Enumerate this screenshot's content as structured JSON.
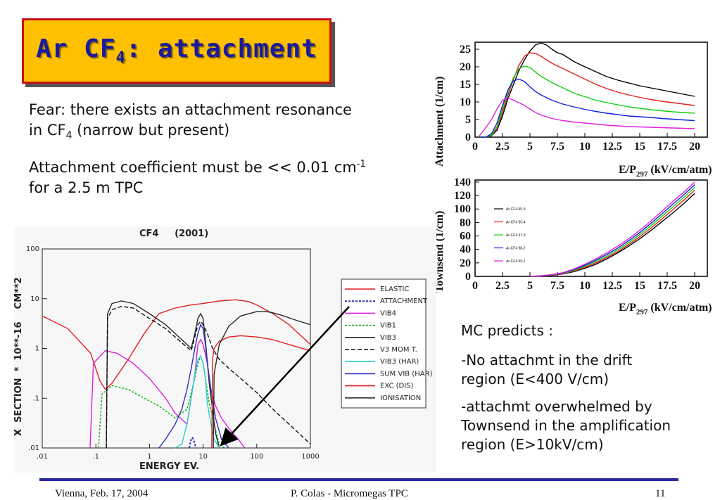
{
  "title": {
    "main": "Ar CF",
    "sub": "4",
    "rest": ": attachment"
  },
  "fear": {
    "line1": "Fear: there exists an attachment resonance",
    "line2_pre": "in CF",
    "line2_sub": "4",
    "line2_post": " (narrow but present)"
  },
  "coef": {
    "line1_pre": "Attachment coefficient must be << 0.01 cm",
    "line1_sup": "-1",
    "line2": "for a 2.5 m TPC"
  },
  "mc": {
    "l1": "MC predicts :",
    "l2": "-No attachmt in the drift",
    "l3": "region (E<400 V/cm)",
    "l4": "-attachmt overwhelmed by",
    "l5": "Townsend in the amplification",
    "l6": "region (E>10kV/cm)"
  },
  "footer": {
    "left": "Vienna,  Feb. 17, 2004",
    "center": "P. Colas  -  Micromegas TPC",
    "right": "11"
  },
  "chart_data": [
    {
      "type": "line",
      "ylabel": "Attachment (1/cm)",
      "xlabel_pre": "E/P",
      "xlabel_sub": "297",
      "xlabel_post": " (kV/cm/atm)",
      "xlim": [
        0,
        20
      ],
      "ylim": [
        0,
        27
      ],
      "xticks": [
        "0",
        "2.5",
        "5",
        "7.5",
        "10",
        "12.5",
        "15",
        "17.5",
        "20"
      ],
      "yticks": [
        "0",
        "5",
        "10",
        "15",
        "20",
        "25"
      ],
      "series": [
        {
          "color": "#000000",
          "x": [
            0.5,
            1,
            1.5,
            2,
            2.5,
            3,
            3.5,
            4,
            4.5,
            5,
            5.5,
            6,
            6.5,
            7,
            7.5,
            8,
            9,
            10,
            11,
            12,
            13,
            14,
            15,
            16,
            17,
            18,
            19,
            20
          ],
          "y": [
            0,
            0,
            0.4,
            2,
            6,
            11,
            15,
            19,
            22,
            24.5,
            26.2,
            26.8,
            26.2,
            25,
            24,
            23.5,
            21.5,
            20,
            18.6,
            17.2,
            16.2,
            15.4,
            14.6,
            14,
            13.4,
            12.8,
            12.2,
            11.6
          ]
        },
        {
          "color": "#e02020",
          "x": [
            0.5,
            1,
            1.5,
            2,
            2.5,
            3,
            3.5,
            4,
            4.5,
            5,
            5.5,
            6,
            6.5,
            7,
            8,
            9,
            10,
            11,
            12,
            13,
            14,
            15,
            16,
            17,
            18,
            19,
            20
          ],
          "y": [
            0,
            0,
            0.5,
            2.5,
            7,
            12,
            16.5,
            20.5,
            23,
            24,
            23.8,
            23,
            22,
            21,
            19.5,
            18,
            16.5,
            15,
            13.8,
            12.8,
            12,
            11.3,
            10.7,
            10.2,
            9.8,
            9.4,
            9
          ]
        },
        {
          "color": "#10d010",
          "x": [
            0.5,
            1,
            1.5,
            2,
            2.5,
            3,
            3.5,
            4,
            4.5,
            5,
            5.5,
            6,
            7,
            8,
            9,
            10,
            11,
            12,
            13,
            14,
            15,
            16,
            17,
            18,
            19,
            20
          ],
          "y": [
            0,
            0,
            0.6,
            3,
            8,
            13,
            17,
            19.5,
            20.2,
            19.8,
            18.5,
            17.3,
            15.5,
            14,
            12.5,
            11.5,
            10.5,
            9.8,
            9.2,
            8.6,
            8.2,
            7.8,
            7.5,
            7.2,
            7,
            6.8
          ]
        },
        {
          "color": "#1020e0",
          "x": [
            0.5,
            1,
            1.5,
            2,
            2.5,
            3,
            3.5,
            4,
            4.5,
            5,
            5.5,
            6,
            7,
            8,
            9,
            10,
            11,
            12,
            13,
            14,
            15,
            16,
            17,
            18,
            19,
            20
          ],
          "y": [
            0,
            0,
            1,
            4,
            9,
            13.5,
            16,
            16.5,
            15.8,
            14.3,
            13,
            12,
            10.5,
            9.4,
            8.6,
            7.9,
            7.3,
            6.8,
            6.4,
            6,
            5.8,
            5.6,
            5.3,
            5.1,
            4.9,
            4.7
          ]
        },
        {
          "color": "#e020e0",
          "x": [
            0.3,
            0.8,
            1.5,
            2,
            2.5,
            3,
            3.5,
            4,
            4.5,
            5,
            5.5,
            6,
            7,
            8,
            9,
            10,
            11,
            12,
            13,
            14,
            15,
            16,
            17,
            18,
            19,
            20
          ],
          "y": [
            0,
            2,
            5,
            8,
            10.5,
            11.2,
            10.5,
            9.8,
            9,
            8,
            7,
            6.3,
            5.3,
            4.7,
            4.3,
            4,
            3.7,
            3.4,
            3.2,
            3,
            2.9,
            2.8,
            2.7,
            2.6,
            2.5,
            2.4
          ]
        }
      ]
    },
    {
      "type": "line",
      "ylabel": "Townsend (1/cm)",
      "xlabel_pre": "E/P",
      "xlabel_sub": "297",
      "xlabel_post": " (kV/cm/atm)",
      "xlim": [
        0,
        20
      ],
      "ylim": [
        0,
        142
      ],
      "xticks": [
        "0",
        "2.5",
        "5",
        "7.5",
        "10",
        "12.5",
        "15",
        "17.5",
        "20"
      ],
      "yticks": [
        "0",
        "20",
        "40",
        "60",
        "80",
        "100",
        "120",
        "140"
      ],
      "series": [
        {
          "name": "Ar-CF4 95-5",
          "color": "#000000",
          "x": [
            5,
            6,
            7,
            8,
            9,
            10,
            11,
            12,
            13,
            14,
            15,
            16,
            17,
            18,
            19,
            20
          ],
          "y": [
            0,
            0.5,
            1.5,
            3.5,
            7,
            12,
            18,
            26,
            35,
            45,
            56,
            68,
            81,
            94,
            108,
            123
          ]
        },
        {
          "name": "Ar-CF4 96-4",
          "color": "#e02020",
          "x": [
            5,
            6,
            7,
            8,
            9,
            10,
            11,
            12,
            13,
            14,
            15,
            16,
            17,
            18,
            19,
            20
          ],
          "y": [
            0,
            0.6,
            1.8,
            4,
            8,
            13.5,
            20,
            28,
            37,
            47.5,
            59,
            71.5,
            85,
            99,
            113,
            128
          ]
        },
        {
          "name": "Ar-CF4 97-3",
          "color": "#10d010",
          "x": [
            5,
            6,
            7,
            8,
            9,
            10,
            11,
            12,
            13,
            14,
            15,
            16,
            17,
            18,
            19,
            20
          ],
          "y": [
            0,
            0.7,
            2,
            4.5,
            9,
            15,
            22,
            30,
            39.5,
            50,
            62,
            75,
            89,
            103,
            117,
            132
          ]
        },
        {
          "name": "Ar-CF4 98-2",
          "color": "#1020e0",
          "x": [
            5,
            6,
            7,
            8,
            9,
            10,
            11,
            12,
            13,
            14,
            15,
            16,
            17,
            18,
            19,
            20
          ],
          "y": [
            0,
            0.8,
            2.3,
            5,
            10,
            16.5,
            24,
            32.5,
            42,
            53,
            65,
            78.5,
            92.5,
            107,
            121,
            136
          ]
        },
        {
          "name": "Ar-CF4 99-1",
          "color": "#e020e0",
          "x": [
            5,
            6,
            7,
            8,
            9,
            10,
            11,
            12,
            13,
            14,
            15,
            16,
            17,
            18,
            19,
            20
          ],
          "y": [
            0,
            0.9,
            2.6,
            5.5,
            11,
            18,
            26,
            35,
            45,
            56,
            68.5,
            82,
            96.5,
            111,
            125,
            140
          ]
        }
      ]
    },
    {
      "type": "line",
      "title": "CF4     (2001)",
      "xlabel": "ENERGY EV.",
      "ylabel": "X  SECTION  *  10**-16    CM**2",
      "log_x": true,
      "log_y": true,
      "xlim": [
        0.01,
        1000
      ],
      "ylim": [
        0.01,
        100
      ],
      "xticks": [
        ".01",
        ".1",
        "1",
        "10",
        "100",
        "1000"
      ],
      "yticks": [
        ".01",
        ".1",
        "1",
        "10",
        "100"
      ],
      "legend_position": "right",
      "series": [
        {
          "name": "ELASTIC",
          "color": "#e02020",
          "dash": "",
          "x": [
            0.01,
            0.03,
            0.08,
            0.12,
            0.15,
            0.2,
            0.4,
            0.8,
            1.5,
            3,
            6,
            10,
            20,
            40,
            70,
            100,
            200,
            400,
            1000
          ],
          "y": [
            4.5,
            2.5,
            0.8,
            0.22,
            0.15,
            0.2,
            0.6,
            2,
            5,
            6.5,
            7.5,
            8,
            9,
            9.5,
            8.8,
            7.5,
            5,
            3,
            1.2
          ]
        },
        {
          "name": "ATTACHMENT",
          "color": "#3030c0",
          "dash": "3,2",
          "width": 2,
          "x": [
            5.5,
            6,
            6.3,
            6.6,
            7,
            7.3
          ],
          "y": [
            0.01,
            0.015,
            0.016,
            0.015,
            0.012,
            0.01
          ]
        },
        {
          "name": "VIB4",
          "color": "#e020e0",
          "dash": "",
          "x": [
            0.078,
            0.09,
            0.15,
            0.25,
            0.5,
            1,
            2,
            3,
            5,
            7,
            8,
            9,
            10,
            12,
            14,
            17,
            22,
            30,
            45,
            60
          ],
          "y": [
            0.01,
            0.5,
            0.9,
            0.8,
            0.5,
            0.25,
            0.1,
            0.05,
            0.03,
            0.3,
            1.2,
            1.5,
            1.2,
            0.5,
            0.15,
            0.07,
            0.04,
            0.025,
            0.015,
            0.01
          ]
        },
        {
          "name": "VIB1",
          "color": "#10b010",
          "dash": "3,2",
          "x": [
            0.112,
            0.13,
            0.2,
            0.4,
            0.8,
            1.5,
            3,
            5,
            7,
            8,
            9,
            10,
            11,
            13,
            16,
            20,
            25
          ],
          "y": [
            0.01,
            0.12,
            0.18,
            0.15,
            0.1,
            0.07,
            0.04,
            0.06,
            0.25,
            0.5,
            0.7,
            0.5,
            0.25,
            0.08,
            0.03,
            0.012,
            0.01
          ]
        },
        {
          "name": "VIB3",
          "color": "#2a2a2a",
          "dash": "",
          "x": [
            0.157,
            0.165,
            0.2,
            0.3,
            0.5,
            1,
            2,
            4,
            6,
            7,
            8,
            9,
            10,
            11,
            13,
            17,
            20
          ],
          "y": [
            0.01,
            5,
            8,
            9,
            8,
            5,
            3,
            1.5,
            1,
            2,
            4,
            5,
            4,
            1.5,
            0.2,
            0.02,
            0.01
          ]
        },
        {
          "name": "V3 MOM T.",
          "color": "#111111",
          "dash": "6,3",
          "x": [
            0.157,
            0.165,
            0.2,
            0.3,
            0.5,
            1,
            2,
            4,
            6,
            8,
            9,
            10,
            12,
            15,
            20,
            30,
            50,
            100,
            200,
            400,
            1000
          ],
          "y": [
            0.01,
            4,
            6,
            7,
            6.5,
            4,
            2.5,
            1.3,
            0.9,
            3,
            3.5,
            3,
            2,
            1,
            0.6,
            0.4,
            0.25,
            0.13,
            0.06,
            0.03,
            0.012
          ]
        },
        {
          "name": "VIB3 (HAR)",
          "color": "#20d0d0",
          "dash": "",
          "x": [
            3,
            4,
            5,
            6,
            7,
            8,
            9,
            10,
            11,
            12,
            14,
            16,
            20
          ],
          "y": [
            0.01,
            0.012,
            0.03,
            0.1,
            0.3,
            0.6,
            0.7,
            0.5,
            0.25,
            0.08,
            0.03,
            0.015,
            0.01
          ]
        },
        {
          "name": "SUM VIB (HAR)",
          "color": "#3030c0",
          "dash": "",
          "x": [
            1.5,
            2,
            3,
            4,
            5,
            6,
            7,
            8,
            9,
            10,
            11,
            12,
            14,
            17,
            22,
            30
          ],
          "y": [
            0.01,
            0.015,
            0.03,
            0.06,
            0.15,
            0.4,
            1,
            2,
            3,
            2.5,
            1.2,
            0.5,
            0.15,
            0.04,
            0.015,
            0.01
          ]
        },
        {
          "name": "EXC (DIS)",
          "color": "#e02020",
          "dash": "",
          "x": [
            14.5,
            15,
            16,
            20,
            30,
            50,
            100,
            200,
            400,
            1000
          ],
          "y": [
            0.01,
            0.6,
            1,
            1.4,
            1.7,
            1.8,
            1.7,
            1.5,
            1.2,
            0.9
          ]
        },
        {
          "name": "IONISATION",
          "color": "#2a2a2a",
          "dash": "",
          "x": [
            15.5,
            16,
            20,
            30,
            50,
            100,
            150,
            200,
            300,
            500,
            1000
          ],
          "y": [
            0.01,
            0.3,
            1.2,
            2.8,
            4.5,
            5.5,
            5.5,
            5.2,
            4.6,
            3.8,
            3
          ]
        }
      ]
    }
  ]
}
